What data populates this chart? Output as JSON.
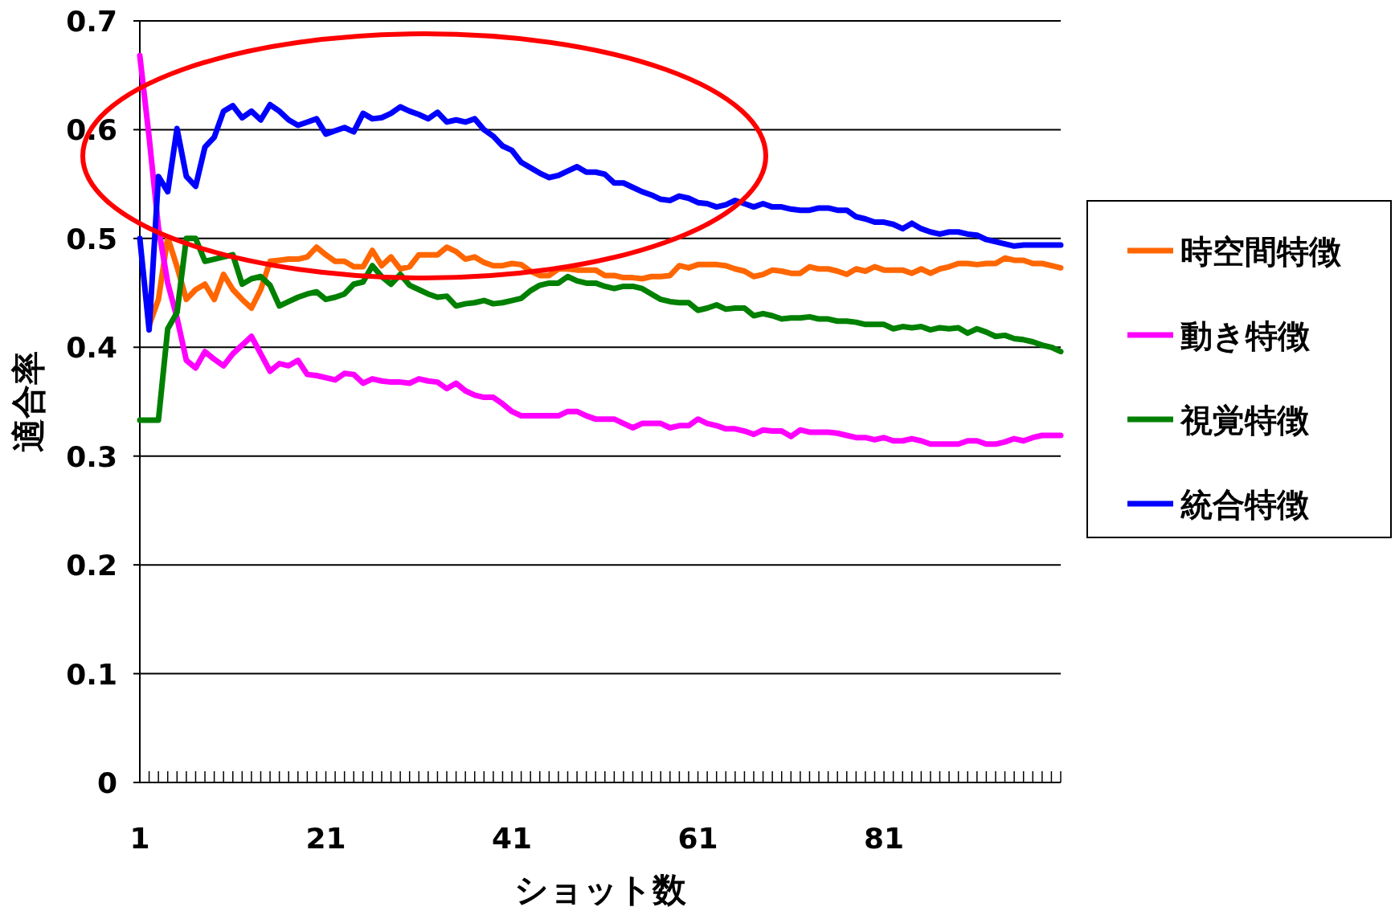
{
  "chart_data": {
    "type": "line",
    "xlabel": "ショット数",
    "ylabel": "適合率",
    "x": [
      1,
      2,
      3,
      4,
      5,
      6,
      7,
      8,
      9,
      10,
      11,
      12,
      13,
      14,
      15,
      16,
      17,
      18,
      19,
      20,
      21,
      22,
      23,
      24,
      25,
      26,
      27,
      28,
      29,
      30,
      31,
      32,
      33,
      34,
      35,
      36,
      37,
      38,
      39,
      40,
      41,
      42,
      43,
      44,
      45,
      46,
      47,
      48,
      49,
      50,
      51,
      52,
      53,
      54,
      55,
      56,
      57,
      58,
      59,
      60,
      61,
      62,
      63,
      64,
      65,
      66,
      67,
      68,
      69,
      70,
      71,
      72,
      73,
      74,
      75,
      76,
      77,
      78,
      79,
      80,
      81,
      82,
      83,
      84,
      85,
      86,
      87,
      88,
      89,
      90,
      91,
      92,
      93,
      94,
      95,
      96,
      97,
      98,
      99,
      100
    ],
    "xlim": [
      1,
      100
    ],
    "xticks": [
      1,
      21,
      41,
      61,
      81
    ],
    "ylim": [
      0,
      0.7
    ],
    "yticks": [
      0,
      0.1,
      0.2,
      0.3,
      0.4,
      0.5,
      0.6,
      0.7
    ],
    "grid": "y",
    "legend": "right",
    "line_style": "solid",
    "marker": "none",
    "series": [
      {
        "name": "時空間特徴",
        "color": "#ff6600",
        "values": [
          null,
          0.42,
          0.444,
          0.501,
          0.474,
          0.444,
          0.453,
          0.458,
          0.444,
          0.467,
          0.453,
          0.444,
          0.436,
          0.453,
          0.479,
          0.48,
          0.481,
          0.481,
          0.483,
          0.492,
          0.485,
          0.479,
          0.479,
          0.474,
          0.474,
          0.489,
          0.475,
          0.483,
          0.472,
          0.474,
          0.485,
          0.485,
          0.485,
          0.492,
          0.488,
          0.481,
          0.483,
          0.478,
          0.475,
          0.475,
          0.477,
          0.476,
          0.47,
          0.466,
          0.466,
          0.472,
          0.472,
          0.471,
          0.471,
          0.471,
          0.466,
          0.466,
          0.464,
          0.464,
          0.463,
          0.465,
          0.465,
          0.466,
          0.475,
          0.473,
          0.476,
          0.476,
          0.476,
          0.475,
          0.472,
          0.47,
          0.465,
          0.467,
          0.471,
          0.47,
          0.468,
          0.468,
          0.474,
          0.472,
          0.472,
          0.47,
          0.467,
          0.472,
          0.47,
          0.474,
          0.471,
          0.471,
          0.471,
          0.468,
          0.472,
          0.468,
          0.472,
          0.474,
          0.477,
          0.477,
          0.476,
          0.477,
          0.477,
          0.482,
          0.48,
          0.48,
          0.477,
          0.477,
          0.475,
          0.473
        ]
      },
      {
        "name": "動き特徴",
        "color": "#ff00ff",
        "values": [
          0.668,
          0.593,
          0.51,
          0.459,
          0.427,
          0.388,
          0.381,
          0.396,
          0.389,
          0.383,
          0.394,
          0.402,
          0.41,
          0.394,
          0.378,
          0.385,
          0.383,
          0.388,
          0.375,
          0.374,
          0.372,
          0.37,
          0.376,
          0.375,
          0.367,
          0.371,
          0.369,
          0.368,
          0.368,
          0.367,
          0.371,
          0.369,
          0.368,
          0.362,
          0.367,
          0.36,
          0.356,
          0.354,
          0.354,
          0.348,
          0.341,
          0.337,
          0.337,
          0.337,
          0.337,
          0.337,
          0.341,
          0.341,
          0.337,
          0.334,
          0.334,
          0.334,
          0.33,
          0.326,
          0.33,
          0.33,
          0.33,
          0.326,
          0.328,
          0.328,
          0.334,
          0.33,
          0.328,
          0.325,
          0.325,
          0.323,
          0.32,
          0.324,
          0.323,
          0.323,
          0.318,
          0.324,
          0.322,
          0.322,
          0.322,
          0.321,
          0.319,
          0.317,
          0.317,
          0.315,
          0.317,
          0.314,
          0.314,
          0.316,
          0.314,
          0.311,
          0.311,
          0.311,
          0.311,
          0.314,
          0.314,
          0.311,
          0.311,
          0.313,
          0.316,
          0.314,
          0.317,
          0.319,
          0.319,
          0.319
        ]
      },
      {
        "name": "視覚特徴",
        "color": "#008000",
        "values": [
          0.333,
          0.333,
          0.333,
          0.417,
          0.432,
          0.5,
          0.5,
          0.479,
          0.481,
          0.483,
          0.485,
          0.458,
          0.463,
          0.465,
          0.457,
          0.438,
          0.442,
          0.446,
          0.449,
          0.451,
          0.444,
          0.446,
          0.449,
          0.458,
          0.46,
          0.475,
          0.465,
          0.458,
          0.467,
          0.457,
          0.453,
          0.449,
          0.446,
          0.447,
          0.438,
          0.44,
          0.441,
          0.443,
          0.44,
          0.441,
          0.443,
          0.445,
          0.452,
          0.457,
          0.459,
          0.459,
          0.465,
          0.461,
          0.459,
          0.459,
          0.456,
          0.454,
          0.456,
          0.456,
          0.454,
          0.449,
          0.444,
          0.442,
          0.441,
          0.441,
          0.434,
          0.436,
          0.439,
          0.435,
          0.436,
          0.436,
          0.429,
          0.431,
          0.429,
          0.426,
          0.427,
          0.427,
          0.428,
          0.426,
          0.426,
          0.424,
          0.424,
          0.423,
          0.421,
          0.421,
          0.421,
          0.417,
          0.419,
          0.418,
          0.419,
          0.416,
          0.418,
          0.417,
          0.418,
          0.413,
          0.417,
          0.414,
          0.41,
          0.411,
          0.408,
          0.407,
          0.405,
          0.402,
          0.4,
          0.396
        ]
      },
      {
        "name": "統合特徴",
        "color": "#0000ff",
        "values": [
          0.5,
          0.416,
          0.557,
          0.543,
          0.601,
          0.557,
          0.548,
          0.584,
          0.593,
          0.617,
          0.622,
          0.611,
          0.617,
          0.609,
          0.623,
          0.617,
          0.609,
          0.604,
          0.607,
          0.61,
          0.596,
          0.599,
          0.602,
          0.598,
          0.615,
          0.61,
          0.611,
          0.615,
          0.621,
          0.617,
          0.614,
          0.61,
          0.616,
          0.607,
          0.609,
          0.607,
          0.61,
          0.6,
          0.594,
          0.585,
          0.581,
          0.57,
          0.565,
          0.56,
          0.556,
          0.558,
          0.562,
          0.566,
          0.561,
          0.561,
          0.559,
          0.551,
          0.551,
          0.547,
          0.543,
          0.54,
          0.536,
          0.535,
          0.539,
          0.537,
          0.533,
          0.532,
          0.529,
          0.531,
          0.535,
          0.532,
          0.529,
          0.532,
          0.529,
          0.529,
          0.527,
          0.526,
          0.526,
          0.528,
          0.528,
          0.526,
          0.526,
          0.52,
          0.518,
          0.515,
          0.515,
          0.513,
          0.509,
          0.514,
          0.509,
          0.506,
          0.504,
          0.506,
          0.506,
          0.504,
          0.503,
          0.499,
          0.497,
          0.495,
          0.493,
          0.494,
          0.494,
          0.494,
          0.494,
          0.494
        ]
      }
    ]
  }
}
